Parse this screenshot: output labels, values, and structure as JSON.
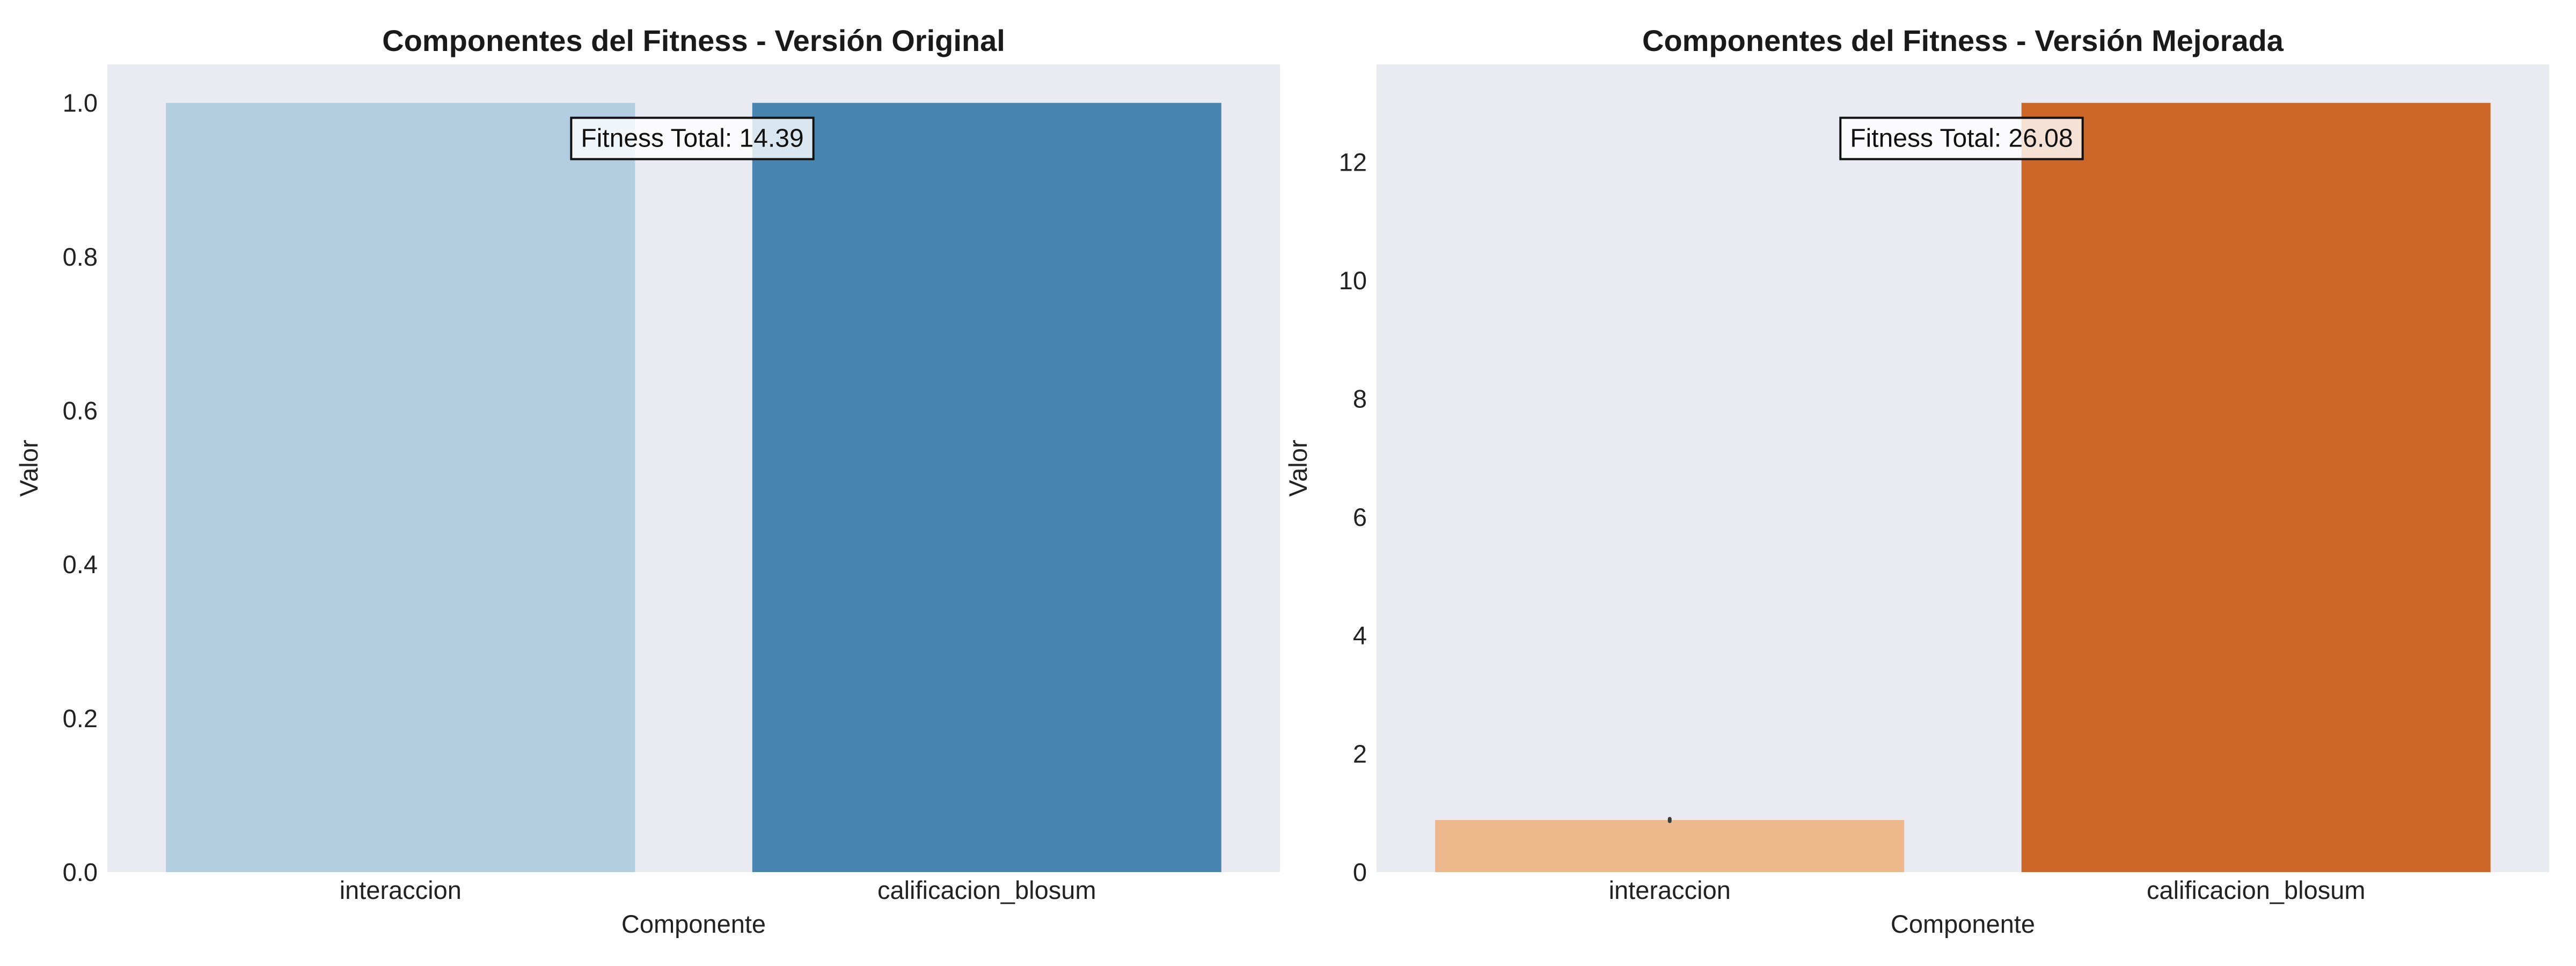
{
  "chart_data": [
    {
      "type": "bar",
      "title": "Componentes del Fitness - Versión Original",
      "xlabel": "Componente",
      "ylabel": "Valor",
      "categories": [
        "interaccion",
        "calificacion_blosum"
      ],
      "values": [
        1.0,
        1.0
      ],
      "colors": [
        "#b3cde0",
        "#4884b0"
      ],
      "ylim": [
        0,
        1.05
      ],
      "yticks": [
        "0.0",
        "0.2",
        "0.4",
        "0.6",
        "0.8",
        "1.0"
      ],
      "annotation": "Fitness Total: 14.39",
      "grid": false
    },
    {
      "type": "bar",
      "title": "Componentes del Fitness - Versión Mejorada",
      "xlabel": "Componente",
      "ylabel": "Valor",
      "categories": [
        "interaccion",
        "calificacion_blosum"
      ],
      "values": [
        0.88,
        13.0
      ],
      "error": [
        0.02,
        0
      ],
      "colors": [
        "#edb98c",
        "#cd6629"
      ],
      "ylim": [
        0,
        13.65
      ],
      "yticks": [
        "0",
        "2",
        "4",
        "6",
        "8",
        "10",
        "12"
      ],
      "annotation": "Fitness Total: 26.08",
      "grid": false
    }
  ]
}
